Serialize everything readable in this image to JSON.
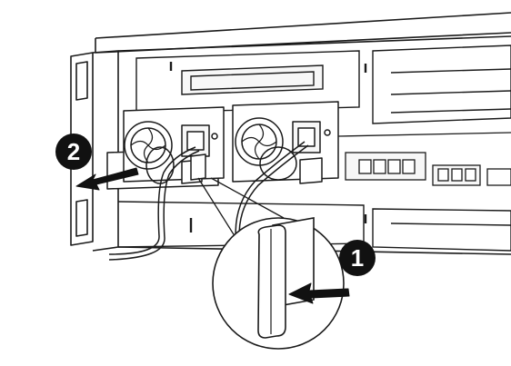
{
  "figure": {
    "steps": [
      {
        "number": "2",
        "action": "pull-psu-out"
      },
      {
        "number": "1",
        "action": "press-release-tab"
      }
    ],
    "colors": {
      "line": "#1a1a1a",
      "chassis_fill": "#ffffff",
      "panel_fill": "#f7f7f7",
      "badge_fill": "#111111",
      "badge_text": "#ffffff",
      "arrow_fill": "#111111"
    }
  }
}
